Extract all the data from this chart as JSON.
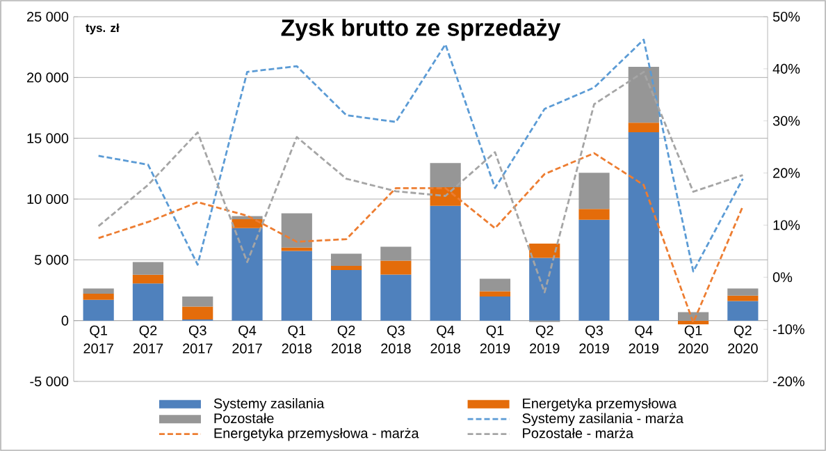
{
  "chart_data": {
    "type": "bar",
    "stacked": true,
    "title": "Zysk brutto ze sprzedaży",
    "ylabel": "tys. zł",
    "categories": [
      "Q1 2017",
      "Q2 2017",
      "Q3 2017",
      "Q4 2017",
      "Q1 2018",
      "Q2 2018",
      "Q3 2018",
      "Q4 2018",
      "Q1 2019",
      "Q2 2019",
      "Q3 2019",
      "Q4 2019",
      "Q1 2020",
      "Q2 2020"
    ],
    "series": [
      {
        "name": "Systemy zasilania",
        "color": "#4f81bd",
        "values": [
          1720,
          3060,
          100,
          7610,
          5740,
          4160,
          3790,
          9440,
          1990,
          5160,
          8290,
          15490,
          0,
          1610
        ]
      },
      {
        "name": "Energetyka przemysłowa",
        "color": "#e46c0a",
        "values": [
          490,
          720,
          1050,
          730,
          260,
          350,
          1140,
          1540,
          420,
          1180,
          890,
          800,
          -300,
          450
        ]
      },
      {
        "name": "Pozostałe",
        "color": "#969696",
        "values": [
          430,
          1040,
          840,
          260,
          2830,
          1000,
          1150,
          1980,
          1030,
          -100,
          2980,
          4590,
          690,
          580
        ]
      },
      {
        "name": "Systemy zasilania - marża",
        "type": "line",
        "axis": "y2",
        "line_style": "dashed",
        "color": "#5b9bd5",
        "values": [
          23.3,
          21.6,
          2.4,
          39.4,
          40.5,
          31.1,
          29.8,
          44.7,
          17.1,
          32.3,
          36.4,
          45.6,
          1.1,
          18.9
        ]
      },
      {
        "name": "Energetyka przemysłowa - marża",
        "type": "line",
        "axis": "y2",
        "line_style": "dashed",
        "color": "#ed7d31",
        "values": [
          7.5,
          10.6,
          14.4,
          11.8,
          6.8,
          7.3,
          17.1,
          17.1,
          9.4,
          19.8,
          23.8,
          17.7,
          -8.7,
          13.6
        ]
      },
      {
        "name": "Pozostałe - marża",
        "type": "line",
        "axis": "y2",
        "line_style": "dashed",
        "color": "#a5a5a5",
        "values": [
          9.8,
          17.7,
          27.8,
          2.9,
          26.9,
          18.9,
          16.5,
          15.6,
          24.0,
          -2.9,
          33.2,
          39.4,
          16.4,
          19.6
        ]
      }
    ],
    "ylim": [
      -5000,
      25000
    ],
    "yticks": [
      {
        "value": -5000,
        "label": "-5 000"
      },
      0,
      {
        "value": 5000,
        "label": "5 000"
      },
      {
        "value": 10000,
        "label": "10 000"
      },
      {
        "value": 15000,
        "label": "15 000"
      },
      {
        "value": 20000,
        "label": "20 000"
      },
      {
        "value": 25000,
        "label": "25 000"
      }
    ],
    "y2lim": [
      -20,
      50
    ],
    "y2ticks": [
      {
        "value": -20,
        "label": "-20%"
      },
      {
        "value": -10,
        "label": "-10%"
      },
      {
        "value": 0,
        "label": "0%"
      },
      {
        "value": 10,
        "label": "10%"
      },
      {
        "value": 20,
        "label": "20%"
      },
      {
        "value": 30,
        "label": "30%"
      },
      {
        "value": 40,
        "label": "40%"
      },
      {
        "value": 50,
        "label": "50%"
      }
    ],
    "grid": "y",
    "legend": "bottom",
    "marker": "none"
  }
}
